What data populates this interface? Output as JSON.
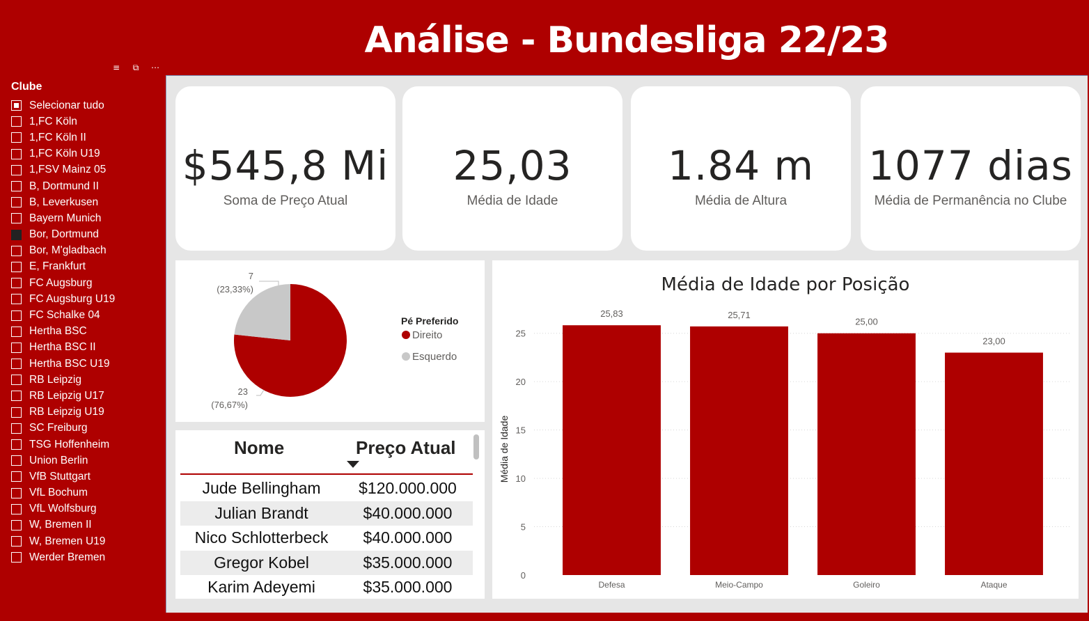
{
  "header": {
    "title": "Análise - Bundesliga 22/23"
  },
  "slicer_toolbar": {
    "icons": [
      "filter-icon",
      "focus-mode-icon",
      "more-options-icon"
    ]
  },
  "slicer": {
    "title": "Clube",
    "items": [
      {
        "label": "Selecionar tudo",
        "state": "partial"
      },
      {
        "label": "1,FC Köln",
        "state": "unchecked"
      },
      {
        "label": "1,FC Köln II",
        "state": "unchecked"
      },
      {
        "label": "1,FC Köln U19",
        "state": "unchecked"
      },
      {
        "label": "1,FSV Mainz 05",
        "state": "unchecked"
      },
      {
        "label": "B, Dortmund II",
        "state": "unchecked"
      },
      {
        "label": "B, Leverkusen",
        "state": "unchecked"
      },
      {
        "label": "Bayern Munich",
        "state": "unchecked"
      },
      {
        "label": "Bor, Dortmund",
        "state": "checked"
      },
      {
        "label": "Bor, M'gladbach",
        "state": "unchecked"
      },
      {
        "label": "E, Frankfurt",
        "state": "unchecked"
      },
      {
        "label": "FC Augsburg",
        "state": "unchecked"
      },
      {
        "label": "FC Augsburg U19",
        "state": "unchecked"
      },
      {
        "label": "FC Schalke 04",
        "state": "unchecked"
      },
      {
        "label": "Hertha BSC",
        "state": "unchecked"
      },
      {
        "label": "Hertha BSC II",
        "state": "unchecked"
      },
      {
        "label": "Hertha BSC U19",
        "state": "unchecked"
      },
      {
        "label": "RB Leipzig",
        "state": "unchecked"
      },
      {
        "label": "RB Leipzig U17",
        "state": "unchecked"
      },
      {
        "label": "RB Leipzig U19",
        "state": "unchecked"
      },
      {
        "label": "SC Freiburg",
        "state": "unchecked"
      },
      {
        "label": "TSG Hoffenheim",
        "state": "unchecked"
      },
      {
        "label": "Union Berlin",
        "state": "unchecked"
      },
      {
        "label": "VfB Stuttgart",
        "state": "unchecked"
      },
      {
        "label": "VfL Bochum",
        "state": "unchecked"
      },
      {
        "label": "VfL Wolfsburg",
        "state": "unchecked"
      },
      {
        "label": "W, Bremen II",
        "state": "unchecked"
      },
      {
        "label": "W, Bremen U19",
        "state": "unchecked"
      },
      {
        "label": "Werder Bremen",
        "state": "unchecked"
      }
    ]
  },
  "kpis": [
    {
      "value": "$545,8 Mi",
      "label": "Soma de Preço Atual"
    },
    {
      "value": "25,03",
      "label": "Média de Idade"
    },
    {
      "value": "1.84 m",
      "label": "Média de Altura"
    },
    {
      "value": "1077 dias",
      "label": "Média de Permanência no Clube"
    }
  ],
  "table": {
    "headers": [
      "Nome",
      "Preço Atual"
    ],
    "sort_icon": "sort-descending-icon",
    "rows": [
      [
        "Jude Bellingham",
        "$120.000.000"
      ],
      [
        "Julian Brandt",
        "$40.000.000"
      ],
      [
        "Nico Schlotterbeck",
        "$40.000.000"
      ],
      [
        "Gregor Kobel",
        "$35.000.000"
      ],
      [
        "Karim Adeyemi",
        "$35.000.000"
      ]
    ]
  },
  "colors": {
    "accent": "#ae0000",
    "secondary": "#c8c8c8",
    "canvas": "#e6e6e6"
  },
  "chart_data": [
    {
      "type": "pie",
      "legend_title": "Pé Preferido",
      "legend_position": "right",
      "slices": [
        {
          "name": "Direito",
          "value": 23,
          "pct_label": "(76,67%)",
          "color": "#ae0000"
        },
        {
          "name": "Esquerdo",
          "value": 7,
          "pct_label": "(23,33%)",
          "color": "#c8c8c8"
        }
      ]
    },
    {
      "type": "bar",
      "title": "Média de Idade por Posição",
      "ylabel": "Média de Idade",
      "xlabel": "",
      "categories": [
        "Defesa",
        "Meio-Campo",
        "Goleiro",
        "Ataque"
      ],
      "values": [
        25.83,
        25.71,
        25.0,
        23.0
      ],
      "value_labels": [
        "25,83",
        "25,71",
        "25,00",
        "23,00"
      ],
      "ylim": [
        0,
        27.5
      ],
      "yticks": [
        0,
        5,
        10,
        15,
        20,
        25
      ],
      "grid": true,
      "color": "#ae0000"
    }
  ]
}
